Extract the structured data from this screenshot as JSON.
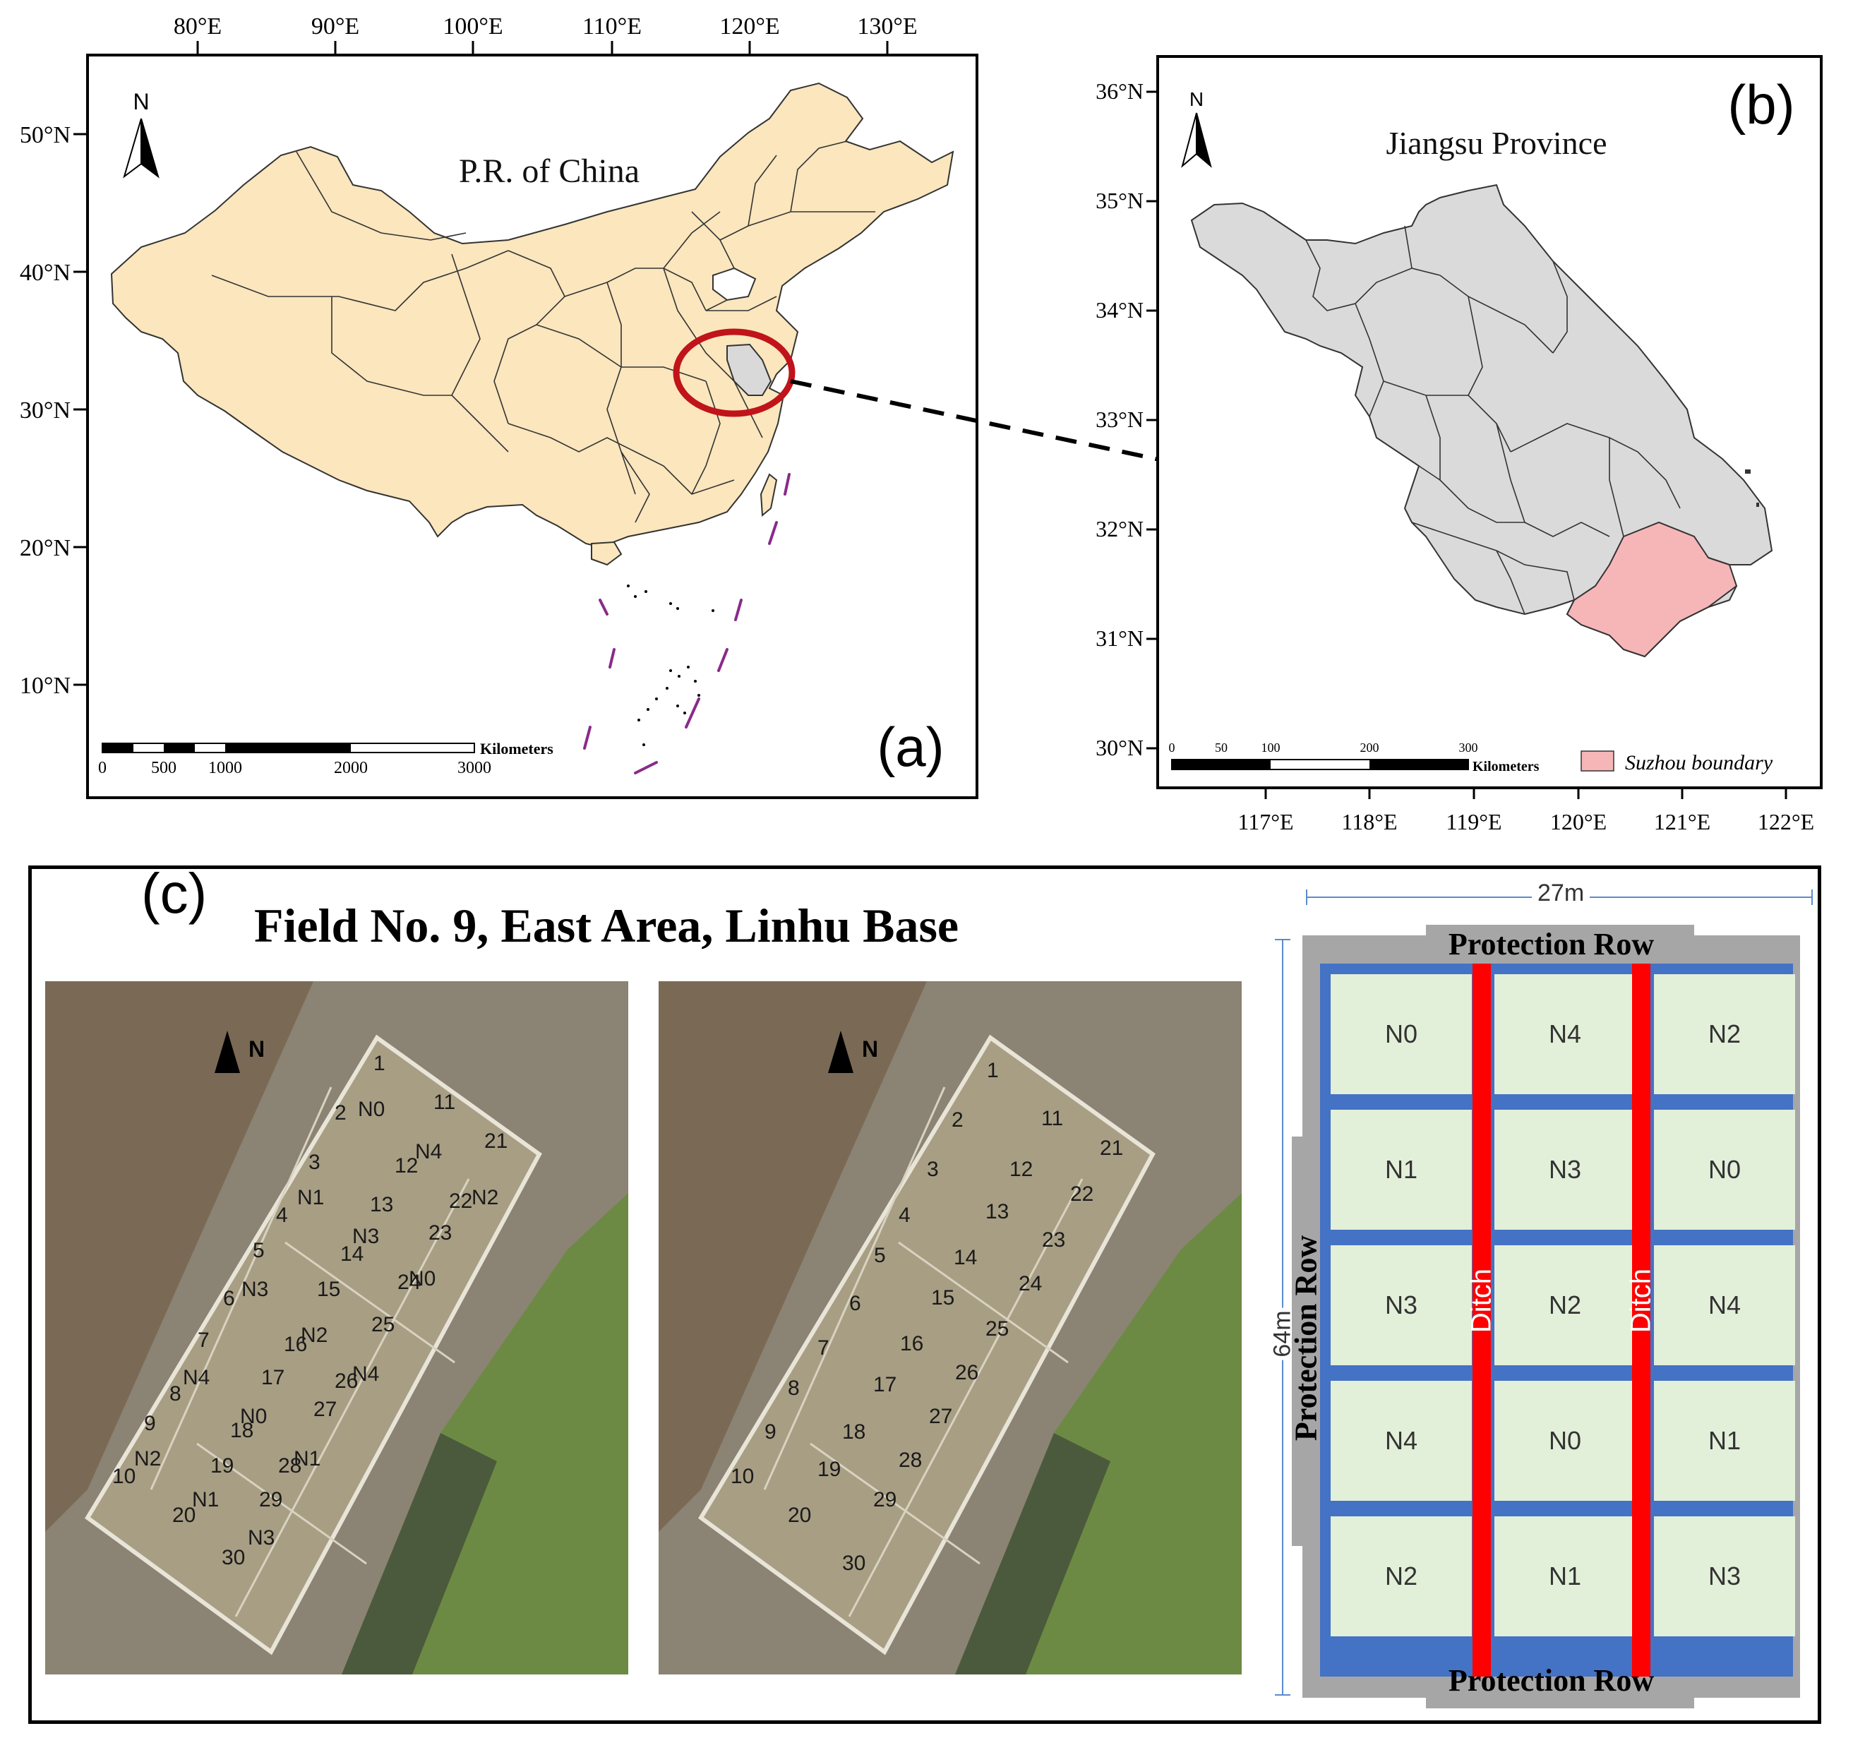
{
  "panel_a": {
    "label": "(a)",
    "title": "P.R. of China",
    "north": "N",
    "lon_ticks": [
      "80°E",
      "90°E",
      "100°E",
      "110°E",
      "120°E",
      "130°E"
    ],
    "lat_ticks": [
      "50°N",
      "40°N",
      "30°N",
      "20°N",
      "10°N"
    ],
    "scale_unit": "Kilometers",
    "scale_ticks": [
      "0",
      "500",
      "1000",
      "2000",
      "3000"
    ],
    "colors": {
      "land": "#fbe6bd",
      "jiangsu": "#d9d9d9",
      "highlight_circle": "#c0141a",
      "nine_dash": "#8a2a8a"
    }
  },
  "panel_b": {
    "label": "(b)",
    "title": "Jiangsu Province",
    "north": "N",
    "lon_ticks": [
      "117°E",
      "118°E",
      "119°E",
      "120°E",
      "121°E",
      "122°E"
    ],
    "lat_ticks": [
      "36°N",
      "35°N",
      "34°N",
      "33°N",
      "32°N",
      "31°N",
      "30°N"
    ],
    "scale_unit": "Kilometers",
    "scale_ticks": [
      "0",
      "50",
      "100",
      "200",
      "300"
    ],
    "legend_label": "Suzhou boundary",
    "colors": {
      "province": "#dadada",
      "suzhou": "#f6b6b8"
    }
  },
  "panel_c": {
    "label": "(c)",
    "title": "Field No. 9, East Area, Linhu Base",
    "north": "N",
    "photo1_plots": [
      "1",
      "2",
      "3",
      "4",
      "5",
      "6",
      "7",
      "8",
      "9",
      "10",
      "11",
      "12",
      "13",
      "14",
      "15",
      "16",
      "17",
      "18",
      "19",
      "20",
      "21",
      "22",
      "23",
      "24",
      "25",
      "26",
      "27",
      "28",
      "29",
      "30"
    ],
    "photo1_treatments": [
      "N0",
      "N4",
      "N1",
      "N2",
      "N3",
      "N3",
      "N0",
      "N2",
      "N4",
      "N4",
      "N0",
      "N2",
      "N1",
      "N1",
      "N3"
    ],
    "photo2_plots": [
      "1",
      "2",
      "3",
      "4",
      "5",
      "6",
      "7",
      "8",
      "9",
      "10",
      "11",
      "12",
      "13",
      "14",
      "15",
      "16",
      "17",
      "18",
      "19",
      "20",
      "21",
      "22",
      "23",
      "24",
      "25",
      "26",
      "27",
      "28",
      "29",
      "30"
    ],
    "schematic": {
      "width_label": "27m",
      "height_label": "64m",
      "top_label": "Protection Row",
      "bottom_label": "Protection Row",
      "left_label": "Protection Row",
      "ditch_label": "Ditch",
      "grid": [
        [
          "N0",
          "N4",
          "N2"
        ],
        [
          "N1",
          "N3",
          "N0"
        ],
        [
          "N3",
          "N2",
          "N4"
        ],
        [
          "N4",
          "N0",
          "N1"
        ],
        [
          "N2",
          "N1",
          "N3"
        ]
      ],
      "colors": {
        "plot": "#e2efd9",
        "border": "#4472c4",
        "ditch": "#ff0000",
        "protection": "#a6a6a6",
        "dim": "#5b8bd0"
      }
    }
  }
}
